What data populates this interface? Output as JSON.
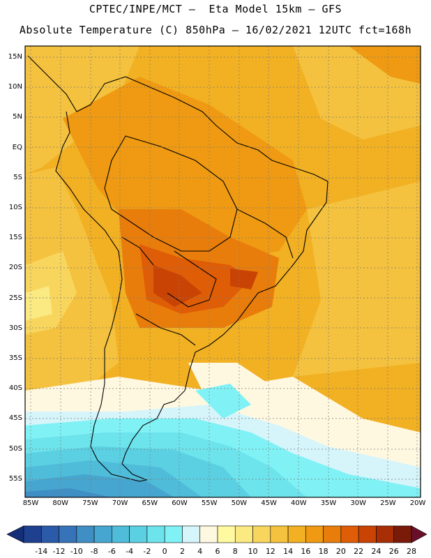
{
  "title_line1": "CPTEC/INPE/MCT –  Eta Model 15km – GFS",
  "title_line2": "Absolute Temperature (C) 850hPa – 16/02/2021 12UTC fct=168h",
  "lat_ticks": [
    "15N",
    "10N",
    "5N",
    "EQ",
    "5S",
    "10S",
    "15S",
    "20S",
    "25S",
    "30S",
    "35S",
    "40S",
    "45S",
    "50S",
    "55S"
  ],
  "lon_ticks": [
    "85W",
    "80W",
    "75W",
    "70W",
    "65W",
    "60W",
    "55W",
    "50W",
    "45W",
    "40W",
    "35W",
    "30W",
    "25W",
    "20W"
  ],
  "colorbar": {
    "labels": [
      "-14",
      "-12",
      "-10",
      "-8",
      "-6",
      "-4",
      "-2",
      "0",
      "2",
      "4",
      "6",
      "8",
      "10",
      "12",
      "14",
      "16",
      "18",
      "20",
      "22",
      "24",
      "26",
      "28"
    ],
    "colors": [
      "#1f3f8f",
      "#2a5aa8",
      "#3673b8",
      "#3f8ec4",
      "#47a6cf",
      "#4fbcd9",
      "#5bd0e2",
      "#6de3ec",
      "#80f2f5",
      "#d5f5fb",
      "#fff8e1",
      "#fffaa0",
      "#fbe982",
      "#f8d65e",
      "#f4c23e",
      "#f2b023",
      "#ef9a12",
      "#e87d0c",
      "#df5d06",
      "#c94404",
      "#a82e06",
      "#7a1b0a"
    ]
  }
}
